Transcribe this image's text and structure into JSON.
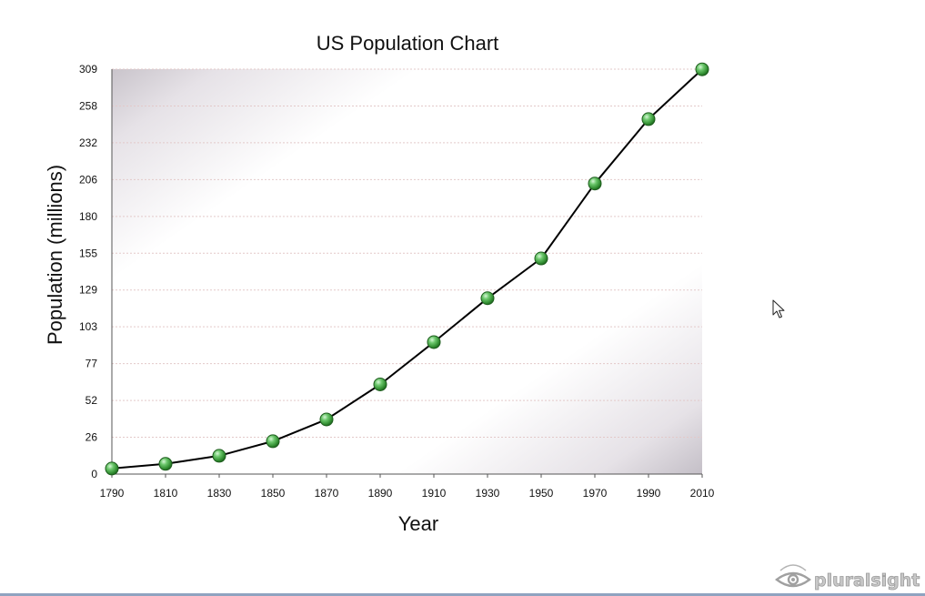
{
  "chart_data": {
    "type": "line",
    "title": "US Population Chart",
    "xlabel": "Year",
    "ylabel": "Population (millions)",
    "x": [
      1790,
      1810,
      1830,
      1850,
      1870,
      1890,
      1910,
      1930,
      1950,
      1970,
      1990,
      2010
    ],
    "series": [
      {
        "values": [
          3.9,
          7.2,
          12.9,
          23.2,
          38.6,
          62.9,
          92.2,
          123.2,
          151.3,
          203.2,
          248.7,
          308.7
        ]
      }
    ],
    "x_ticks": [
      "1790",
      "1810",
      "1830",
      "1850",
      "1870",
      "1890",
      "1910",
      "1930",
      "1950",
      "1970",
      "1990",
      "2010"
    ],
    "y_ticks": [
      "0",
      "26",
      "52",
      "77",
      "103",
      "129",
      "155",
      "180",
      "206",
      "232",
      "258",
      "309"
    ],
    "y_tick_values": [
      0,
      26,
      52,
      77,
      103,
      129,
      155,
      180,
      206,
      232,
      258,
      309
    ],
    "xlim": [
      1790,
      2010
    ],
    "ylim": [
      0,
      309
    ],
    "grid": true,
    "legend": "none",
    "colors": {
      "line": "#000000",
      "marker": "#3a9a3a",
      "marker_highlight": "#b8f0b8",
      "marker_edge": "#1e5e1e",
      "grid": "#e3c9c9",
      "axis": "#555555"
    }
  },
  "watermark": {
    "text": "pluralsight",
    "icon": "eye-icon"
  },
  "cursor": {
    "icon": "mouse-pointer-icon"
  }
}
